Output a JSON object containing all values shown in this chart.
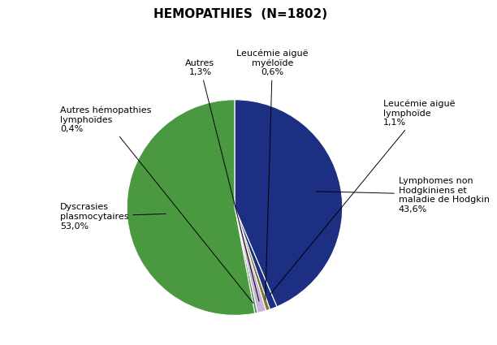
{
  "title": "HEMOPATHIES  (N=1802)",
  "slices": [
    {
      "label": "Lymphomes non\nHodgkiniens et\nmaladie de Hodgkin\n43,6%",
      "value": 43.6,
      "color": "#1C2F82"
    },
    {
      "label": "Leucémie aiguë\nlymphoïde\n1,1%",
      "value": 1.1,
      "color": "#1C2F82"
    },
    {
      "label": "Leucémie aiguë\nmyéloïde\n0,6%",
      "value": 0.6,
      "color": "#7B7B2A"
    },
    {
      "label": "Autres\n1,3%",
      "value": 1.3,
      "color": "#C9B3DC"
    },
    {
      "label": "Autres hémopathies\nlymphoïdes\n0,4%",
      "value": 0.4,
      "color": "#4A9940"
    },
    {
      "label": "Dyscrasies\nplasmocytaires\n53,0%",
      "value": 53.0,
      "color": "#4A9940"
    }
  ],
  "colors": [
    "#1C2F82",
    "#1C2F82",
    "#7B7B2A",
    "#C9B3DC",
    "#4A9940",
    "#4A9940"
  ],
  "background_color": "#FFFFFF",
  "title_fontsize": 11,
  "label_fontsize": 8
}
